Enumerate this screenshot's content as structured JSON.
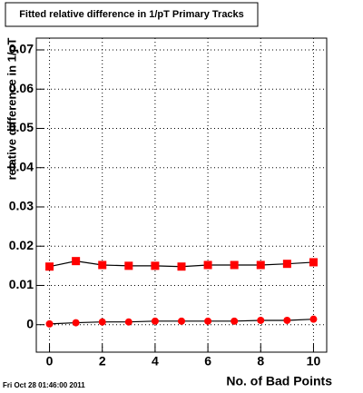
{
  "chart_data": {
    "type": "scatter",
    "title": "Fitted relative difference in 1/pT Primary Tracks",
    "x_label": "No. of Bad Points",
    "y_label": "relative difference in 1/pT",
    "footer": "Fri Oct 28 01:46:00 2011",
    "x": [
      0,
      1,
      2,
      3,
      4,
      5,
      6,
      7,
      8,
      9,
      10
    ],
    "series": [
      {
        "marker": "square",
        "color": "#ff0000",
        "values": [
          0.0148,
          0.0162,
          0.0152,
          0.015,
          0.015,
          0.0148,
          0.0152,
          0.0152,
          0.0152,
          0.0155,
          0.0159
        ]
      },
      {
        "marker": "circle",
        "color": "#ff0000",
        "values": [
          0.0002,
          0.0005,
          0.0007,
          0.0007,
          0.0009,
          0.0009,
          0.0009,
          0.0009,
          0.0011,
          0.0011,
          0.0014
        ]
      }
    ],
    "xlim": [
      -0.5,
      10.5
    ],
    "ylim": [
      -0.007,
      0.073
    ],
    "xticks": [
      0,
      2,
      4,
      6,
      8,
      10
    ],
    "yticks": [
      0,
      0.01,
      0.02,
      0.03,
      0.04,
      0.05,
      0.06,
      0.07
    ],
    "grid": true
  }
}
